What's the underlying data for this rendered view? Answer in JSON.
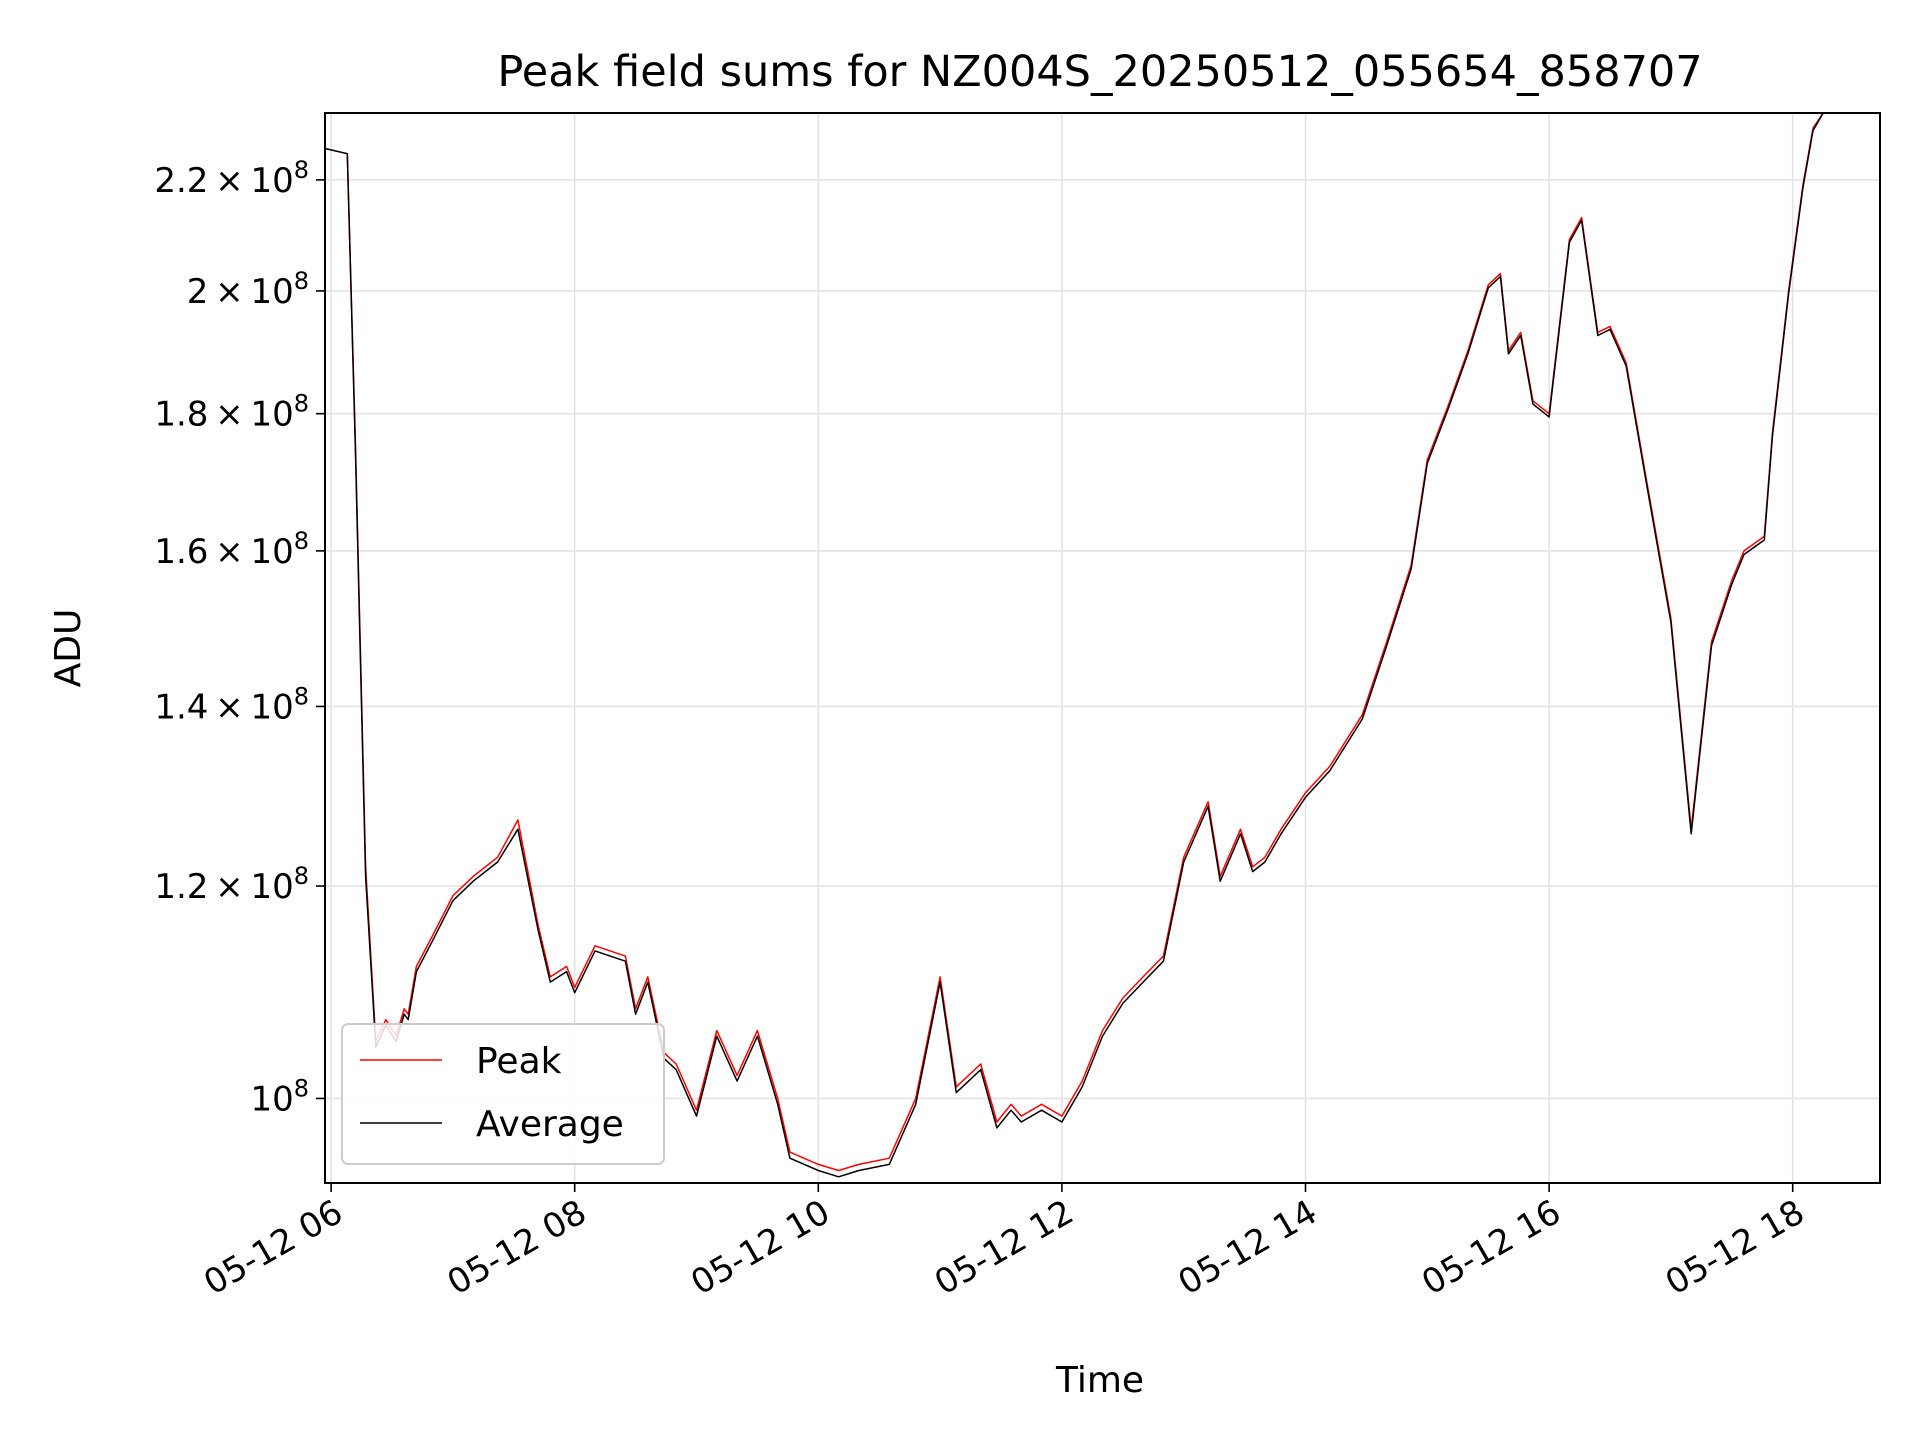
{
  "chart_data": {
    "type": "line",
    "title": "Peak field sums for NZ004S_20250512_055654_858707",
    "xlabel": "Time",
    "ylabel": "ADU",
    "y_scale": "log",
    "xlim": [
      "05-12 05:57",
      "05-12 18:43"
    ],
    "ylim": [
      93000000,
      233000000
    ],
    "grid": true,
    "legend_position": "lower-left",
    "x_ticks": [
      "05-12 06",
      "05-12 08",
      "05-12 10",
      "05-12 12",
      "05-12 14",
      "05-12 16",
      "05-12 18"
    ],
    "y_ticks": [
      {
        "value": 100000000,
        "mantissa": "",
        "base": "10",
        "exp": "8"
      },
      {
        "value": 120000000,
        "mantissa": "1.2",
        "base": "10",
        "exp": "8"
      },
      {
        "value": 140000000,
        "mantissa": "1.4",
        "base": "10",
        "exp": "8"
      },
      {
        "value": 160000000,
        "mantissa": "1.6",
        "base": "10",
        "exp": "8"
      },
      {
        "value": 180000000,
        "mantissa": "1.8",
        "base": "10",
        "exp": "8"
      },
      {
        "value": 200000000,
        "mantissa": "2",
        "base": "10",
        "exp": "8"
      },
      {
        "value": 220000000,
        "mantissa": "2.2",
        "base": "10",
        "exp": "8"
      }
    ],
    "series": [
      {
        "name": "Peak",
        "color": "#ff0000"
      },
      {
        "name": "Average",
        "color": "#000000"
      }
    ],
    "x": [
      "05-12 05:57",
      "05-12 06:08",
      "05-12 06:12",
      "05-12 06:17",
      "05-12 06:22",
      "05-12 06:27",
      "05-12 06:32",
      "05-12 06:36",
      "05-12 06:38",
      "05-12 06:42",
      "05-12 06:50",
      "05-12 07:00",
      "05-12 07:10",
      "05-12 07:22",
      "05-12 07:32",
      "05-12 07:42",
      "05-12 07:48",
      "05-12 07:56",
      "05-12 08:00",
      "05-12 08:10",
      "05-12 08:25",
      "05-12 08:30",
      "05-12 08:36",
      "05-12 08:44",
      "05-12 08:50",
      "05-12 09:00",
      "05-12 09:10",
      "05-12 09:20",
      "05-12 09:30",
      "05-12 09:40",
      "05-12 09:46",
      "05-12 10:00",
      "05-12 10:10",
      "05-12 10:20",
      "05-12 10:35",
      "05-12 10:48",
      "05-12 11:00",
      "05-12 11:08",
      "05-12 11:20",
      "05-12 11:28",
      "05-12 11:35",
      "05-12 11:40",
      "05-12 11:50",
      "05-12 12:00",
      "05-12 12:10",
      "05-12 12:20",
      "05-12 12:30",
      "05-12 12:40",
      "05-12 12:50",
      "05-12 13:00",
      "05-12 13:12",
      "05-12 13:18",
      "05-12 13:28",
      "05-12 13:34",
      "05-12 13:40",
      "05-12 13:48",
      "05-12 14:00",
      "05-12 14:12",
      "05-12 14:28",
      "05-12 14:40",
      "05-12 14:52",
      "05-12 15:00",
      "05-12 15:10",
      "05-12 15:20",
      "05-12 15:30",
      "05-12 15:36",
      "05-12 15:40",
      "05-12 15:46",
      "05-12 15:52",
      "05-12 16:00",
      "05-12 16:10",
      "05-12 16:16",
      "05-12 16:24",
      "05-12 16:30",
      "05-12 16:38",
      "05-12 16:48",
      "05-12 17:00",
      "05-12 17:10",
      "05-12 17:20",
      "05-12 17:30",
      "05-12 17:36",
      "05-12 17:46",
      "05-12 17:50",
      "05-12 17:58",
      "05-12 18:05",
      "05-12 18:10",
      "05-12 18:15",
      "05-12 18:22",
      "05-12 18:28",
      "05-12 18:43"
    ],
    "peak": [
      226000000,
      225000000,
      175000000,
      122000000,
      105000000,
      107000000,
      105500000,
      108000000,
      107500000,
      112000000,
      115000000,
      119000000,
      121000000,
      123000000,
      127000000,
      116000000,
      111000000,
      112000000,
      110000000,
      114000000,
      113000000,
      108000000,
      111000000,
      104000000,
      103000000,
      99000000,
      106000000,
      102000000,
      106000000,
      100000000,
      95500000,
      94500000,
      94000000,
      94500000,
      95000000,
      100000000,
      111000000,
      101000000,
      103000000,
      98000000,
      99500000,
      98500000,
      99500000,
      98500000,
      101500000,
      106000000,
      109000000,
      111000000,
      113000000,
      123000000,
      129000000,
      121000000,
      126000000,
      122000000,
      123000000,
      126000000,
      130000000,
      133000000,
      139000000,
      148000000,
      158000000,
      173000000,
      181000000,
      190000000,
      201000000,
      203000000,
      190000000,
      193000000,
      182000000,
      180000000,
      209000000,
      213000000,
      193000000,
      194000000,
      188000000,
      170000000,
      151000000,
      126000000,
      148000000,
      156000000,
      160000000,
      162000000,
      177000000,
      200000000,
      219000000,
      230000000,
      233000000,
      233000000,
      233000000,
      233000000
    ],
    "average": [
      226000000,
      225000000,
      174000000,
      121000000,
      104500000,
      106500000,
      105000000,
      107500000,
      107000000,
      111500000,
      114500000,
      118500000,
      120500000,
      122500000,
      126000000,
      115500000,
      110500000,
      111500000,
      109500000,
      113500000,
      112500000,
      107500000,
      110500000,
      103500000,
      102500000,
      98500000,
      105500000,
      101500000,
      105500000,
      99500000,
      95000000,
      94000000,
      93500000,
      94000000,
      94500000,
      99500000,
      110500000,
      100500000,
      102500000,
      97500000,
      99000000,
      98000000,
      99000000,
      98000000,
      101000000,
      105500000,
      108500000,
      110500000,
      112500000,
      122500000,
      128500000,
      120500000,
      125500000,
      121500000,
      122500000,
      125500000,
      129500000,
      132500000,
      138500000,
      147500000,
      157500000,
      172500000,
      180500000,
      189500000,
      200500000,
      202500000,
      189500000,
      192500000,
      181500000,
      179500000,
      208500000,
      212500000,
      192500000,
      193500000,
      187500000,
      169500000,
      150500000,
      125500000,
      147500000,
      155500000,
      159500000,
      161500000,
      176500000,
      199500000,
      218500000,
      229500000,
      233000000,
      233000000,
      233000000,
      233000000
    ]
  }
}
